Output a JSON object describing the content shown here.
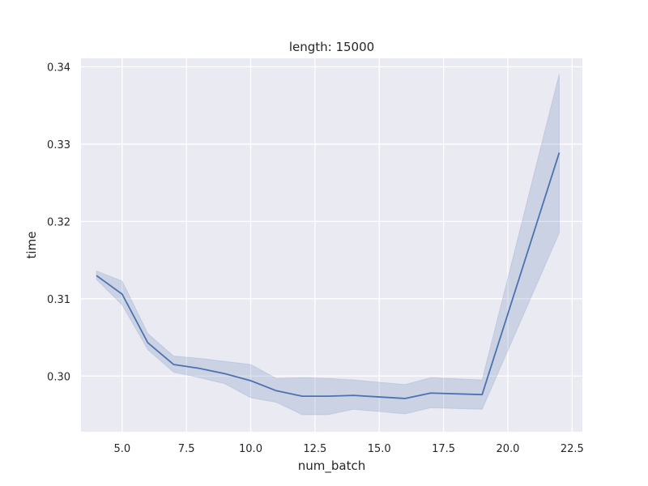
{
  "chart_data": {
    "type": "line",
    "title": "length: 15000",
    "xlabel": "num_batch",
    "ylabel": "time",
    "xlim": [
      3.4,
      22.9
    ],
    "ylim": [
      0.2928,
      0.3411
    ],
    "xticks": [
      5.0,
      7.5,
      10.0,
      12.5,
      15.0,
      17.5,
      20.0,
      22.5
    ],
    "xtick_labels": [
      "5.0",
      "7.5",
      "10.0",
      "12.5",
      "15.0",
      "17.5",
      "20.0",
      "22.5"
    ],
    "yticks": [
      0.3,
      0.31,
      0.32,
      0.33,
      0.34
    ],
    "ytick_labels": [
      "0.30",
      "0.31",
      "0.32",
      "0.33",
      "0.34"
    ],
    "grid": true,
    "background": "#eaeaf2",
    "grid_color": "#ffffff",
    "line_color": "#4c72b0",
    "band_color": "#4c72b0",
    "series": [
      {
        "x": [
          4,
          5,
          6,
          7,
          8,
          9,
          10,
          11,
          12,
          13,
          14,
          15,
          16,
          17,
          19,
          22
        ],
        "y": [
          0.313,
          0.3106,
          0.3043,
          0.3015,
          0.301,
          0.3003,
          0.2994,
          0.2981,
          0.2974,
          0.2974,
          0.2975,
          0.2973,
          0.2971,
          0.2978,
          0.2976,
          0.3289
        ],
        "ci_low": [
          0.3125,
          0.3092,
          0.3034,
          0.3005,
          0.2998,
          0.299,
          0.2972,
          0.2966,
          0.295,
          0.295,
          0.2957,
          0.2954,
          0.2951,
          0.2959,
          0.2957,
          0.3185
        ],
        "ci_high": [
          0.3136,
          0.3123,
          0.3055,
          0.3026,
          0.3023,
          0.3019,
          0.3015,
          0.2997,
          0.2998,
          0.2997,
          0.2995,
          0.2992,
          0.2989,
          0.2998,
          0.2995,
          0.3391
        ]
      }
    ]
  }
}
